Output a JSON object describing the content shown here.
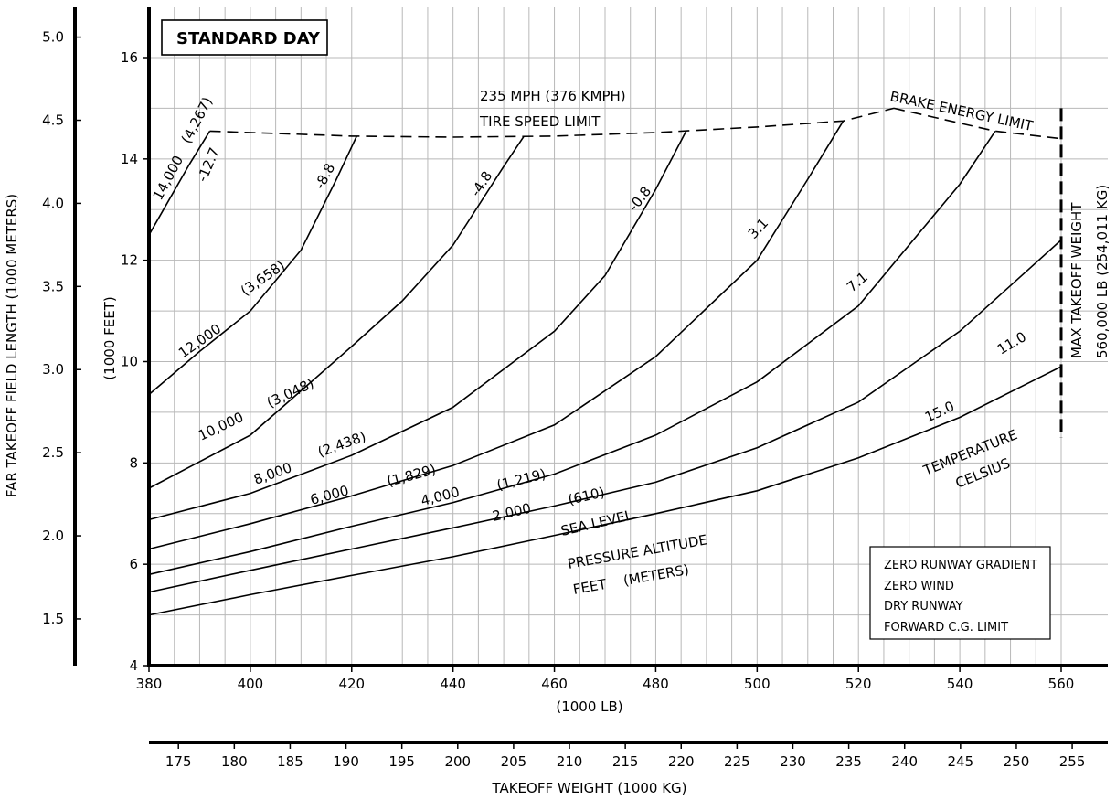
{
  "chart_data": {
    "type": "line",
    "title": "STANDARD DAY",
    "xlabel_primary": "(1000 LB)",
    "xlabel_secondary": "TAKEOFF WEIGHT (1000 KG)",
    "ylabel_primary": "(1000 FEET)",
    "ylabel_secondary": "FAR TAKEOFF FIELD LENGTH (1000 METERS)",
    "xlim": [
      380,
      560
    ],
    "ylim": [
      4,
      17
    ],
    "x_ticks": [
      380,
      400,
      420,
      440,
      460,
      480,
      500,
      520,
      540,
      560
    ],
    "y_ticks": [
      4,
      6,
      8,
      10,
      12,
      14,
      16
    ],
    "kg_ticks": [
      "175",
      "180",
      "185",
      "190",
      "195",
      "200",
      "205",
      "210",
      "215",
      "220",
      "225",
      "230",
      "235",
      "240",
      "245",
      "250",
      "255"
    ],
    "meter_ticks": [
      "1.5",
      "2.0",
      "2.5",
      "3.0",
      "3.5",
      "4.0",
      "4.5",
      "5.0"
    ],
    "altitude_series": [
      {
        "name": "SEA LEVEL",
        "x": [
          380,
          400,
          420,
          440,
          460,
          480,
          500,
          520,
          540,
          560
        ],
        "y": [
          5.0,
          5.4,
          5.78,
          6.15,
          6.57,
          7.0,
          7.45,
          8.1,
          8.9,
          9.9
        ]
      },
      {
        "name": "2,000 (610)",
        "x": [
          380,
          400,
          420,
          440,
          460,
          480,
          500,
          520,
          540,
          560
        ],
        "y": [
          5.45,
          5.88,
          6.3,
          6.72,
          7.15,
          7.62,
          8.3,
          9.2,
          10.6,
          12.4
        ]
      },
      {
        "name": "4,000 (1,219)",
        "x": [
          380,
          400,
          420,
          440,
          460,
          480,
          500,
          520,
          540,
          547
        ],
        "y": [
          5.8,
          6.25,
          6.75,
          7.22,
          7.78,
          8.55,
          9.6,
          11.1,
          13.5,
          14.55
        ]
      },
      {
        "name": "6,000 (1,829)",
        "x": [
          380,
          400,
          420,
          440,
          460,
          480,
          500,
          510,
          517
        ],
        "y": [
          6.3,
          6.8,
          7.35,
          7.95,
          8.75,
          10.1,
          12.0,
          13.6,
          14.75
        ]
      },
      {
        "name": "8,000 (2,438)",
        "x": [
          380,
          400,
          420,
          440,
          460,
          470,
          480,
          486
        ],
        "y": [
          6.88,
          7.4,
          8.15,
          9.1,
          10.6,
          11.7,
          13.4,
          14.55
        ]
      },
      {
        "name": "10,000 (3,048)",
        "x": [
          380,
          400,
          420,
          430,
          440,
          450,
          454
        ],
        "y": [
          7.5,
          8.55,
          10.3,
          11.2,
          12.3,
          13.85,
          14.45
        ]
      },
      {
        "name": "12,000 (3,658)",
        "x": [
          380,
          390,
          400,
          410,
          417,
          421
        ],
        "y": [
          9.35,
          10.2,
          11.0,
          12.2,
          13.6,
          14.45
        ]
      },
      {
        "name": "14,000 (4,267)",
        "x": [
          380,
          384,
          388,
          392
        ],
        "y": [
          12.5,
          13.2,
          13.9,
          14.55
        ]
      }
    ],
    "altitude_labels": [
      "SEA LEVEL",
      "2,000",
      "(610)",
      "4,000",
      "(1,219)",
      "6,000",
      "(1,829)",
      "8,000",
      "(2,438)",
      "10,000",
      "(3,048)",
      "12,000",
      "(3,658)",
      "14,000",
      "(4,267)"
    ],
    "temperature_labels": [
      "15.0",
      "11.0",
      "7.1",
      "3.1",
      "-0.8",
      "-4.8",
      "-8.8",
      "-12.7"
    ],
    "tire_speed_limit": {
      "x": [
        392,
        420,
        440,
        460,
        480,
        500,
        517,
        527
      ],
      "y": [
        14.55,
        14.45,
        14.43,
        14.45,
        14.52,
        14.63,
        14.75,
        15.0
      ]
    },
    "brake_energy_limit": {
      "x": [
        527,
        547,
        560
      ],
      "y": [
        15.0,
        14.55,
        14.4
      ]
    },
    "max_takeoff_weight": {
      "x": 560,
      "y": [
        8.5,
        15.0
      ]
    },
    "annotations": {
      "pressure_altitude_1": "PRESSURE ALTITUDE",
      "pressure_altitude_2": "FEET    (METERS)",
      "temperature_1": "TEMPERATURE",
      "temperature_2": "CELSIUS",
      "tire_1": "235 MPH (376 KMPH)",
      "tire_2": "TIRE SPEED LIMIT",
      "brake": "BRAKE ENERGY LIMIT",
      "mtow_1": "MAX TAKEOFF WEIGHT",
      "mtow_2": "560,000 LB (254,011 KG)"
    },
    "conditions": [
      "ZERO RUNWAY GRADIENT",
      "ZERO WIND",
      "DRY RUNWAY",
      "FORWARD C.G. LIMIT"
    ],
    "grid": true
  }
}
